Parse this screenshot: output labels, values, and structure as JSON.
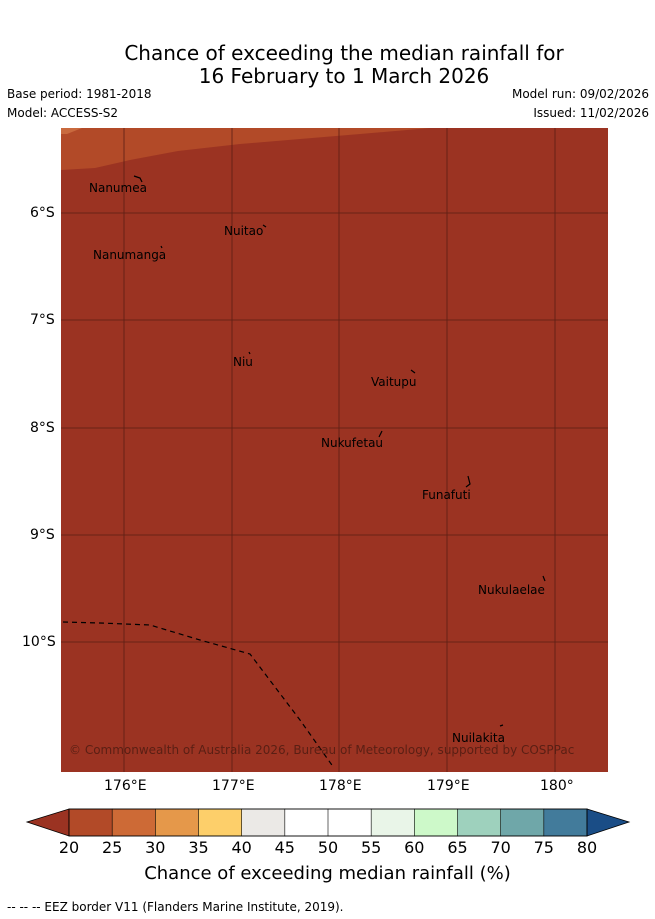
{
  "title": {
    "line1": "Chance of exceeding the median rainfall for",
    "line2": "16 February to 1 March 2026"
  },
  "meta": {
    "base_period": "Base period: 1981-2018",
    "model": "Model: ACCESS-S2",
    "model_run": "Model run: 09/02/2026",
    "issued": "Issued: 11/02/2026"
  },
  "map": {
    "fill_color": "#9b3322",
    "band_color": "#b24a28",
    "grid_color": "#5a1f14",
    "eez_color": "#000000",
    "lat_labels": [
      "6°S",
      "7°S",
      "8°S",
      "9°S",
      "10°S"
    ],
    "lon_labels": [
      "176°E",
      "177°E",
      "178°E",
      "179°E",
      "180°"
    ],
    "islands": [
      "Nanumea",
      "Nuitao",
      "Nanumanga",
      "Niu",
      "Vaitupu",
      "Nukufetau",
      "Funafuti",
      "Nukulaelae",
      "Nuilakita"
    ],
    "copyright": "© Commonwealth of Australia 2026, Bureau of Meteorology, supported by COSPPac"
  },
  "colorbar": {
    "colors": [
      "#9b3322",
      "#b24a28",
      "#cd6a36",
      "#e5984a",
      "#fdcf6a",
      "#ebe9e6",
      "#ffffff",
      "#ffffff",
      "#e9f5e8",
      "#cdf9c9",
      "#9ed1bd",
      "#6fa7a9",
      "#427b9b",
      "#1a4d86"
    ],
    "tick_labels": [
      "20",
      "25",
      "30",
      "35",
      "40",
      "45",
      "50",
      "55",
      "60",
      "65",
      "70",
      "75",
      "80"
    ],
    "title": "Chance of exceeding median rainfall (%)"
  },
  "footer": "--  --  -- EEZ border V11 (Flanders Marine Institute, 2019)."
}
